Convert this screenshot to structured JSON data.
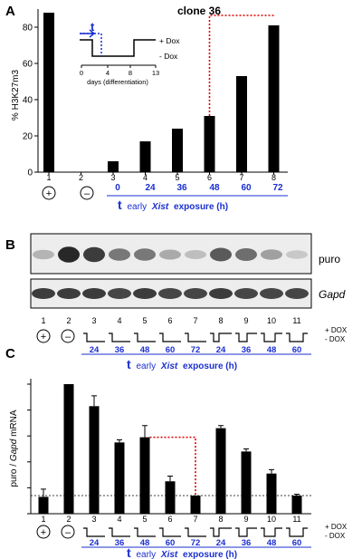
{
  "panel_letters": [
    "A",
    "B",
    "C"
  ],
  "chart_data": [
    {
      "panel": "A",
      "type": "bar",
      "title": "clone 36",
      "ylabel": "% H3K27m3",
      "ylim": [
        0,
        90
      ],
      "yticks": [
        "0",
        "20",
        "40",
        "60",
        "80"
      ],
      "lane_numbers": [
        "1",
        "2",
        "3",
        "4",
        "5",
        "6",
        "7",
        "8"
      ],
      "values": [
        88,
        0,
        6,
        17,
        24,
        31,
        53,
        81
      ],
      "symbols": [
        "+",
        "–"
      ],
      "exposure_hours": [
        "0",
        "24",
        "36",
        "48",
        "60",
        "72"
      ],
      "xlabel_t": "t",
      "xlabel_pre": "early",
      "xlabel_xist": "Xist",
      "xlabel_post": "exposure (h)",
      "annotations": [
        {
          "type": "dotted-bracket",
          "from_lane": "6",
          "to_lane": "8",
          "color": "#dd0000"
        }
      ],
      "inset": {
        "t_label": "t",
        "plus_dox": "+ Dox",
        "minus_dox": "- Dox",
        "ticks": [
          "0",
          "4",
          "8",
          "13"
        ],
        "xlabel": "days (differentiation)"
      }
    },
    {
      "panel": "C",
      "type": "bar",
      "ylabel_pre": "puro / ",
      "ylabel_gapd": "Gapd",
      "ylabel_post": " mRNA",
      "ylim": [
        0,
        100
      ],
      "lane_numbers": [
        "1",
        "2",
        "3",
        "4",
        "5",
        "6",
        "7",
        "8",
        "9",
        "10",
        "11"
      ],
      "values": [
        13,
        100,
        83,
        55,
        59,
        25,
        14,
        66,
        48,
        31,
        14
      ],
      "errors": [
        6,
        0,
        8,
        2,
        9,
        4,
        0,
        2,
        2,
        3,
        1
      ],
      "reference_line": 14,
      "symbols": [
        "+",
        "–"
      ],
      "exposure_hours": [
        "24",
        "36",
        "48",
        "60",
        "72",
        "24",
        "36",
        "48",
        "60"
      ],
      "dox_plus": "+ DOX",
      "dox_minus": "- DOX",
      "xlabel_t": "t",
      "xlabel_pre": "early",
      "xlabel_xist": "Xist",
      "xlabel_post": "exposure (h)",
      "annotations": [
        {
          "type": "dotted-bracket",
          "from_lane": "5",
          "to_lane": "7",
          "color": "#dd0000"
        }
      ]
    }
  ],
  "blot": {
    "panel": "B",
    "labels": [
      "puro",
      "Gapd"
    ],
    "lane_numbers": [
      "1",
      "2",
      "3",
      "4",
      "5",
      "6",
      "7",
      "8",
      "9",
      "10",
      "11"
    ],
    "puro_intensity": [
      0.25,
      0.95,
      0.85,
      0.55,
      0.55,
      0.3,
      0.2,
      0.7,
      0.6,
      0.35,
      0.15
    ],
    "gapd_intensity": [
      0.85,
      0.85,
      0.85,
      0.8,
      0.85,
      0.8,
      0.8,
      0.85,
      0.8,
      0.8,
      0.8
    ],
    "symbols": [
      "+",
      "–"
    ],
    "exposure_hours": [
      "24",
      "36",
      "48",
      "60",
      "72",
      "24",
      "36",
      "48",
      "60"
    ],
    "dox_plus": "+ DOX",
    "dox_minus": "- DOX",
    "xlabel_t": "t",
    "xlabel_pre": "early",
    "xlabel_xist": "Xist",
    "xlabel_post": "exposure (h)"
  },
  "colors": {
    "accent": "#1a2fd0",
    "dotted": "#dd0000",
    "bar": "#000000"
  }
}
